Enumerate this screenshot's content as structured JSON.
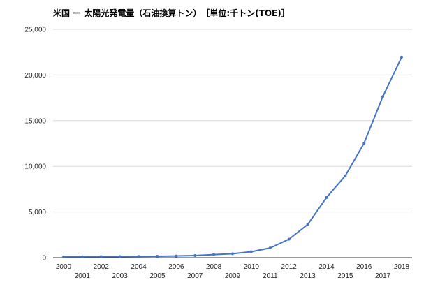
{
  "chart_data": {
    "type": "line",
    "title": "米国 ー 太陽光発電量（石油換算トン）　［単位:千トン(TOE)］",
    "xlabel": "",
    "ylabel": "",
    "x": [
      2000,
      2001,
      2002,
      2003,
      2004,
      2005,
      2006,
      2007,
      2008,
      2009,
      2010,
      2011,
      2012,
      2013,
      2014,
      2015,
      2016,
      2017,
      2018
    ],
    "series": [
      {
        "values": [
          90,
          100,
          110,
          115,
          135,
          150,
          180,
          230,
          340,
          430,
          650,
          1060,
          2020,
          3630,
          6580,
          8950,
          12530,
          17640,
          21960
        ]
      }
    ],
    "ylim": [
      0,
      25000
    ],
    "yticks": [
      0,
      5000,
      10000,
      15000,
      20000,
      25000
    ],
    "ytick_labels": [
      "0",
      "5,000",
      "10,000",
      "15,000",
      "20,000",
      "25,000"
    ],
    "grid": true,
    "legend": "none",
    "line_color": "#4472c4",
    "grid_color": "#d9d9d9"
  }
}
